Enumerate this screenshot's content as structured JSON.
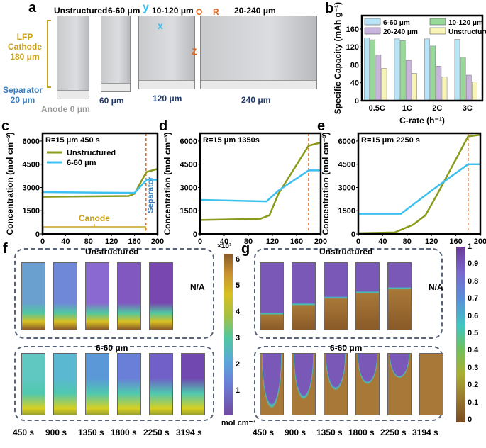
{
  "panel_a": {
    "label": "a",
    "titles": [
      "Unstructured",
      "6-60 μm",
      "10-120 μm",
      "20-240 μm"
    ],
    "cathode": "LFP\nCathode\n180 μm",
    "cathode_l1": "LFP",
    "cathode_l2": "Cathode",
    "cathode_l3": "180 μm",
    "separator_l1": "Separator",
    "separator_l2": "20 μm",
    "anode": "Anode",
    "anode_val": "0 μm",
    "widths": [
      "60 μm",
      "120 μm",
      "240 μm"
    ],
    "axes": {
      "y": "y",
      "x": "x",
      "o": "O",
      "r": "R",
      "z": "Z"
    }
  },
  "panel_f": {
    "label": "f",
    "top": "Unstructured",
    "bottom": "6-60 μm",
    "na": "N/A",
    "cbar_ticks": [
      "6",
      "5",
      "4",
      "3",
      "2",
      "1"
    ],
    "cbar_exp": "×10³",
    "cbar_unit": "mol cm⁻³"
  },
  "panel_g": {
    "label": "g",
    "top": "Unstructured",
    "bottom": "6-60 μm",
    "na": "N/A",
    "cbar_ticks": [
      "1",
      "0.9",
      "0.8",
      "0.7",
      "0.6",
      "0.5",
      "0.4",
      "0.3",
      "0.2",
      "0.1",
      "0"
    ]
  },
  "times": [
    "450 s",
    "900 s",
    "1350 s",
    "1800 s",
    "2250 s",
    "3194 s"
  ],
  "colors": {
    "blue": "#3cc0f0",
    "olive": "#8a9a1a",
    "dash": "#e06a20",
    "gold": "#c8a020",
    "sepblue": "#3a7fc0"
  },
  "chart_data": [
    {
      "id": "b",
      "label": "b",
      "type": "bar",
      "categories": [
        "0.5C",
        "1C",
        "2C",
        "3C"
      ],
      "xlabel": "C-rate (h⁻¹)",
      "ylabel": "Specific Capacity (mAh g⁻¹)",
      "ylim": [
        0,
        190
      ],
      "yticks": [
        0,
        40,
        80,
        120,
        160
      ],
      "legend": "top",
      "series": [
        {
          "name": "6-60 μm",
          "color": "#b8e4f8",
          "values": [
            140,
            138,
            138,
            137
          ]
        },
        {
          "name": "10-120 μm",
          "color": "#98d898",
          "values": [
            136,
            134,
            122,
            97
          ]
        },
        {
          "name": "20-240 μm",
          "color": "#c8b4dc",
          "values": [
            102,
            90,
            77,
            57
          ]
        },
        {
          "name": "Unstructured",
          "color": "#f8f4b8",
          "values": [
            72,
            61,
            53,
            42
          ]
        }
      ]
    },
    {
      "id": "c",
      "label": "c",
      "type": "line",
      "annotation": "R=15 μm  450 s",
      "xlabel": "Z (μm)",
      "ylabel": "Concentration (mol cm⁻³)",
      "xlim": [
        0,
        200
      ],
      "ylim": [
        0,
        6500
      ],
      "xticks": [
        0,
        40,
        80,
        120,
        160,
        200
      ],
      "yticks": [
        0,
        1500,
        3000,
        4500,
        6000
      ],
      "legend": "top-left",
      "region_labels": [
        "Canode",
        "Separator"
      ],
      "separator_z": 180,
      "series": [
        {
          "name": "Unstructured",
          "color": "#8a9a1a",
          "x": [
            0,
            150,
            160,
            180,
            181,
            200
          ],
          "y": [
            2400,
            2450,
            2600,
            3950,
            4000,
            4200
          ]
        },
        {
          "name": "6-60 μm",
          "color": "#3cc0f0",
          "x": [
            0,
            160,
            180,
            181,
            200
          ],
          "y": [
            2700,
            2650,
            3450,
            3500,
            3500
          ]
        }
      ]
    },
    {
      "id": "d",
      "label": "d",
      "type": "line",
      "annotation": "R=15 μm  1350s",
      "xlabel": "Z (μm)",
      "ylabel": "Concentration (mol cm⁻³)",
      "xlim": [
        0,
        200
      ],
      "ylim": [
        0,
        6500
      ],
      "xticks": [
        0,
        40,
        80,
        120,
        160,
        200
      ],
      "yticks": [
        0,
        1500,
        3000,
        4500,
        6000
      ],
      "separator_z": 180,
      "series": [
        {
          "name": "Unstructured",
          "color": "#8a9a1a",
          "x": [
            0,
            100,
            115,
            130,
            180,
            200
          ],
          "y": [
            900,
            980,
            1200,
            2600,
            5700,
            5900
          ]
        },
        {
          "name": "6-60 μm",
          "color": "#3cc0f0",
          "x": [
            0,
            110,
            130,
            180,
            200
          ],
          "y": [
            2200,
            2100,
            2800,
            4100,
            4100
          ]
        }
      ]
    },
    {
      "id": "e",
      "label": "e",
      "type": "line",
      "annotation": "R=15 μm  2250 s",
      "xlabel": "Z (μm)",
      "ylabel": "Concentration (mol cm⁻³)",
      "xlim": [
        0,
        200
      ],
      "ylim": [
        0,
        6500
      ],
      "xticks": [
        0,
        40,
        80,
        120,
        160,
        200
      ],
      "yticks": [
        0,
        1500,
        3000,
        4500,
        6000
      ],
      "separator_z": 180,
      "series": [
        {
          "name": "Unstructured",
          "color": "#8a9a1a",
          "x": [
            0,
            60,
            90,
            110,
            130,
            180,
            200
          ],
          "y": [
            50,
            100,
            600,
            1200,
            2600,
            6300,
            6400
          ]
        },
        {
          "name": "6-60 μm",
          "color": "#3cc0f0",
          "x": [
            0,
            70,
            80,
            120,
            180,
            200
          ],
          "y": [
            1300,
            1300,
            1600,
            2800,
            4500,
            4500
          ]
        }
      ]
    }
  ]
}
